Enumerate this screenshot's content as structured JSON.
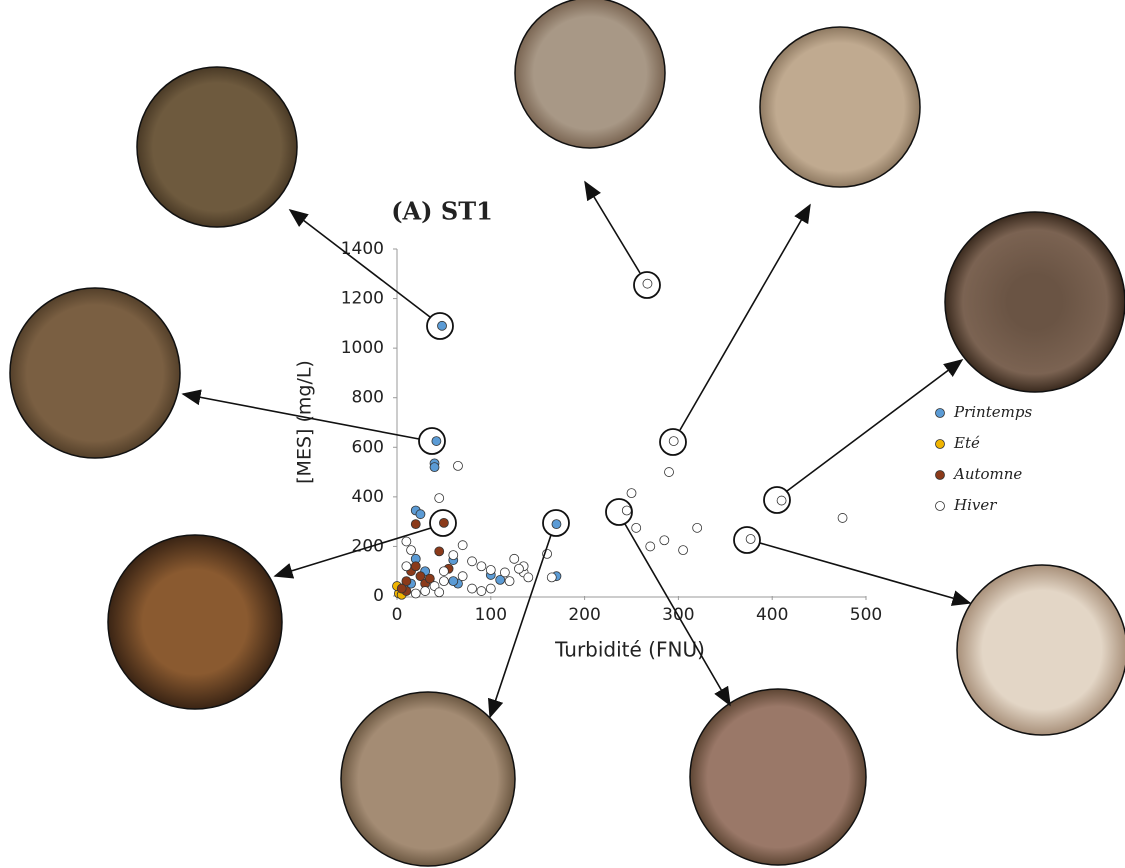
{
  "chart_data": {
    "type": "scatter",
    "title": "(A) ST1",
    "x_label": "Turbidité (FNU)",
    "y_label": "[MES] (mg/L)",
    "xlim": [
      0,
      500
    ],
    "xticks": [
      0,
      100,
      200,
      300,
      400,
      500
    ],
    "ylim": [
      0,
      1400
    ],
    "yticks": [
      0,
      200,
      400,
      600,
      800,
      1000,
      1200,
      1400
    ],
    "series": [
      {
        "name": "Printemps",
        "color": "#5b9bd5",
        "x": [
          48,
          42,
          170,
          40,
          40,
          20,
          25,
          20,
          60,
          65,
          60,
          100,
          110,
          170,
          5,
          30,
          15
        ],
        "values": [
          1090,
          625,
          290,
          535,
          520,
          345,
          330,
          150,
          145,
          50,
          60,
          85,
          65,
          80,
          30,
          100,
          50
        ]
      },
      {
        "name": "Eté",
        "color": "#f0b400",
        "x": [
          2,
          5,
          0
        ],
        "values": [
          10,
          5,
          40
        ]
      },
      {
        "name": "Automne",
        "color": "#8b3a1a",
        "x": [
          50,
          20,
          45,
          15,
          20,
          25,
          10,
          30,
          35,
          10,
          55,
          5
        ],
        "values": [
          295,
          290,
          180,
          100,
          120,
          80,
          60,
          50,
          70,
          20,
          110,
          30
        ]
      },
      {
        "name": "Hiver",
        "color": "#ffffff",
        "x": [
          267,
          295,
          410,
          377,
          245,
          290,
          250,
          475,
          320,
          305,
          270,
          285,
          255,
          65,
          45,
          10,
          15,
          60,
          70,
          80,
          100,
          115,
          125,
          135,
          140,
          160,
          120,
          90,
          70,
          50,
          40,
          30,
          20,
          80,
          100,
          10,
          165,
          135,
          130,
          50,
          90,
          45
        ],
        "values": [
          1260,
          625,
          385,
          230,
          345,
          500,
          415,
          315,
          275,
          185,
          200,
          225,
          275,
          525,
          395,
          220,
          185,
          165,
          205,
          140,
          105,
          95,
          150,
          95,
          75,
          170,
          60,
          120,
          80,
          60,
          40,
          20,
          10,
          30,
          30,
          120,
          75,
          120,
          110,
          100,
          20,
          15
        ]
      }
    ]
  }
}
